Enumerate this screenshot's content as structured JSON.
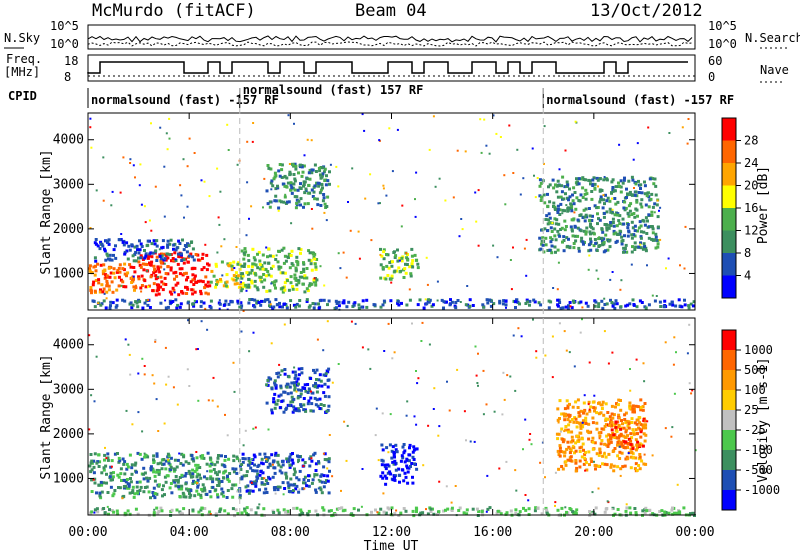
{
  "header": {
    "station": "McMurdo (fitACF)",
    "beam": "Beam 04",
    "date": "13/Oct/2012"
  },
  "summary": {
    "nsky_label": "N.Sky",
    "nsearch_label": "N.Search",
    "noise_ticks_left": [
      "10^5",
      "10^0"
    ],
    "noise_ticks_right": [
      "10^5",
      "10^0"
    ],
    "freq_label_line1": "Freq.",
    "freq_label_line2": "[MHz]",
    "freq_ticks": [
      "18",
      "8"
    ],
    "nave_label": "Nave",
    "nave_ticks": [
      "60",
      "0"
    ],
    "cpid_label": "CPID"
  },
  "cpid_segments": [
    {
      "text": "normalsound (fast) -157 RF",
      "start_hour": 0
    },
    {
      "text": "normalsound (fast) 157 RF",
      "start_hour": 6
    },
    {
      "text": "normalsound (fast) -157 RF",
      "start_hour": 18
    }
  ],
  "time_axis": {
    "label": "Time UT",
    "ticks": [
      "00:00",
      "04:00",
      "08:00",
      "12:00",
      "16:00",
      "20:00",
      "00:00"
    ],
    "tick_hours": [
      0,
      4,
      8,
      12,
      16,
      20,
      24
    ]
  },
  "range_axis": {
    "label": "Slant Range [km]",
    "ticks": [
      "1000",
      "2000",
      "3000",
      "4000"
    ],
    "tick_values": [
      1000,
      2000,
      3000,
      4000
    ],
    "range": [
      180,
      4600
    ]
  },
  "power_colorbar": {
    "label": "Power [dB]",
    "ticks": [
      "28",
      "24",
      "20",
      "16",
      "12",
      "8",
      "4"
    ],
    "colors": [
      "#0000ff",
      "#1e4fb4",
      "#3c8f5f",
      "#4caf4c",
      "#ffff00",
      "#ffa500",
      "#ff6600",
      "#ff0000"
    ]
  },
  "velocity_colorbar": {
    "label": "Velocity [m s-1]",
    "ticks": [
      "1000",
      "500",
      "100",
      "25",
      "-25",
      "-100",
      "-500",
      "-1000"
    ],
    "colors": [
      "#0000ff",
      "#1e4fb4",
      "#3c8f5f",
      "#4cc84c",
      "#c0c0c0",
      "#ffcc00",
      "#ff9900",
      "#ff6600",
      "#ff0000"
    ]
  },
  "chart_data": {
    "type": "heatmap",
    "x_unit": "hour UT",
    "xlim": [
      0,
      24
    ],
    "ylim": [
      180,
      4600
    ],
    "power_panel": [
      {
        "x": [
          0.0,
          2.0
        ],
        "y": [
          600,
          1300
        ],
        "level": 6
      },
      {
        "x": [
          2.0,
          4.8
        ],
        "y": [
          550,
          1500
        ],
        "level": 7
      },
      {
        "x": [
          4.8,
          6.0
        ],
        "y": [
          700,
          1300
        ],
        "level": 4
      },
      {
        "x": [
          0.2,
          4.2
        ],
        "y": [
          1300,
          1800
        ],
        "level": 1
      },
      {
        "x": [
          6.0,
          9.0
        ],
        "y": [
          600,
          1600
        ],
        "level": 3
      },
      {
        "x": [
          7.0,
          9.5
        ],
        "y": [
          2500,
          3500
        ],
        "level": 2
      },
      {
        "x": [
          11.5,
          13.0
        ],
        "y": [
          900,
          1600
        ],
        "level": 3
      },
      {
        "x": [
          17.8,
          22.5
        ],
        "y": [
          1500,
          3200
        ],
        "level": 2
      },
      {
        "x": [
          0.0,
          24.0
        ],
        "y": [
          250,
          450
        ],
        "level": 1
      }
    ],
    "velocity_panel": [
      {
        "x": [
          0.0,
          6.0
        ],
        "y": [
          600,
          1600
        ],
        "level": 2
      },
      {
        "x": [
          6.0,
          9.5
        ],
        "y": [
          700,
          1600
        ],
        "level": 1
      },
      {
        "x": [
          7.0,
          9.5
        ],
        "y": [
          2500,
          3500
        ],
        "level": 1
      },
      {
        "x": [
          11.5,
          13.0
        ],
        "y": [
          900,
          1800
        ],
        "level": 0
      },
      {
        "x": [
          18.5,
          22.0
        ],
        "y": [
          1200,
          2800
        ],
        "level": 6
      },
      {
        "x": [
          20.5,
          22.0
        ],
        "y": [
          1700,
          2400
        ],
        "level": 7
      },
      {
        "x": [
          0.0,
          24.0
        ],
        "y": [
          200,
          380
        ],
        "level": 3
      }
    ]
  }
}
